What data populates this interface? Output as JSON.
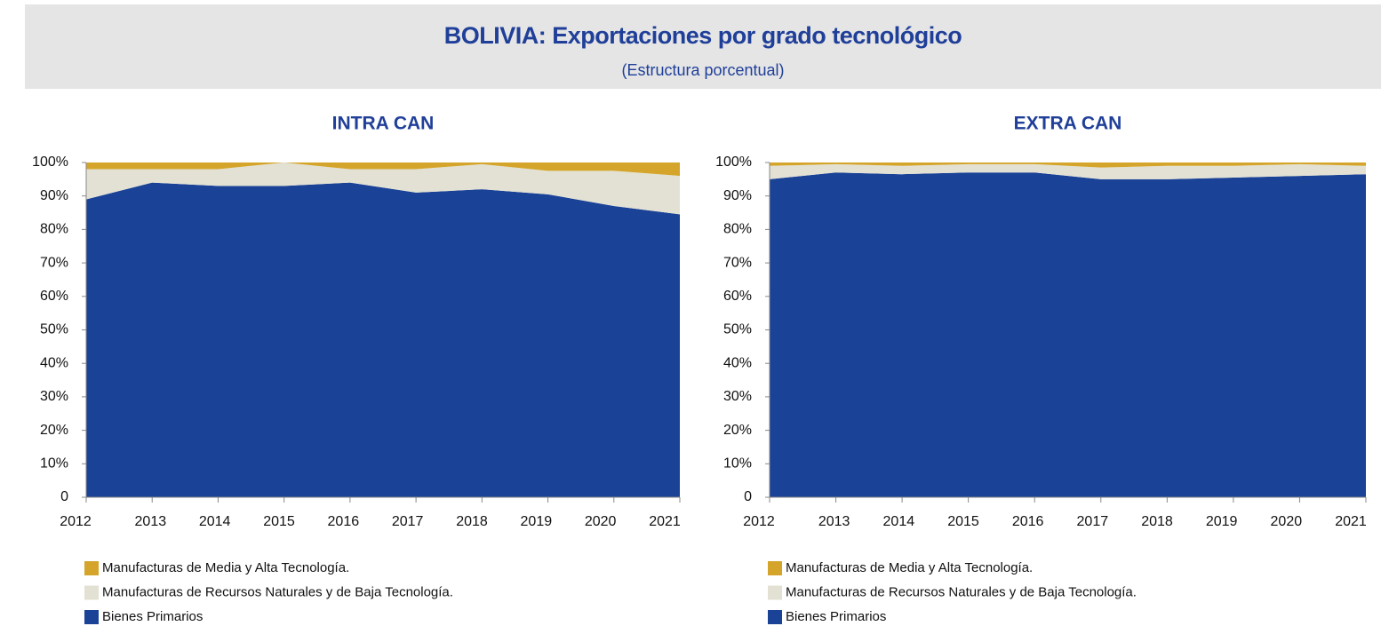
{
  "title": "BOLIVIA: Exportaciones por grado tecnológico",
  "subtitle": "(Estructura porcentual)",
  "chart_data": [
    {
      "type": "area",
      "stacked": true,
      "title": "INTRA CAN",
      "categories": [
        "2012",
        "2013",
        "2014",
        "2015",
        "2016",
        "2017",
        "2018",
        "2019",
        "2020",
        "2021"
      ],
      "series": [
        {
          "name": "Manufacturas de Media y Alta Tecnología.",
          "color": "#d4a52a",
          "values": [
            2,
            2,
            2,
            0,
            2,
            2,
            0.5,
            2.5,
            2.5,
            4
          ]
        },
        {
          "name": "Manufacturas de Recursos Naturales y de Baja Tecnología.",
          "color": "#e3e1d3",
          "values": [
            9,
            4,
            5,
            7,
            4,
            7,
            7.5,
            7,
            10.5,
            11.5
          ]
        },
        {
          "name": "Bienes Primarios",
          "color": "#1a4297",
          "values": [
            89,
            94,
            93,
            93,
            94,
            91,
            92,
            90.5,
            87,
            84.5
          ]
        }
      ],
      "ylim": [
        0,
        100
      ],
      "yticks": [
        0,
        {
          "value": 10,
          "label": "10%"
        },
        {
          "value": 20,
          "label": "20%"
        },
        {
          "value": 30,
          "label": "30%"
        },
        {
          "value": 40,
          "label": "40%"
        },
        {
          "value": 50,
          "label": "50%"
        },
        {
          "value": 60,
          "label": "60%"
        },
        {
          "value": 70,
          "label": "70%"
        },
        {
          "value": 80,
          "label": "80%"
        },
        {
          "value": 90,
          "label": "90%"
        },
        {
          "value": 100,
          "label": "100%"
        }
      ],
      "grid": false
    },
    {
      "type": "area",
      "stacked": true,
      "title": "EXTRA CAN",
      "categories": [
        "2012",
        "2013",
        "2014",
        "2015",
        "2016",
        "2017",
        "2018",
        "2019",
        "2020",
        "2021"
      ],
      "series": [
        {
          "name": "Manufacturas de Media y Alta Tecnología.",
          "color": "#d4a52a",
          "values": [
            1,
            0.5,
            1,
            0.5,
            0.5,
            1.5,
            1,
            1,
            0.5,
            1
          ]
        },
        {
          "name": "Manufacturas de Recursos Naturales y de Baja Tecnología.",
          "color": "#e3e1d3",
          "values": [
            4,
            2.5,
            2.5,
            2.5,
            2.5,
            3.5,
            4,
            3.5,
            3.5,
            2.5
          ]
        },
        {
          "name": "Bienes Primarios",
          "color": "#1a4297",
          "values": [
            95,
            97,
            96.5,
            97,
            97,
            95,
            95,
            95.5,
            96,
            96.5
          ]
        }
      ],
      "ylim": [
        0,
        100
      ],
      "yticks": [
        0,
        {
          "value": 10,
          "label": "10%"
        },
        {
          "value": 20,
          "label": "20%"
        },
        {
          "value": 30,
          "label": "30%"
        },
        {
          "value": 40,
          "label": "40%"
        },
        {
          "value": 50,
          "label": "50%"
        },
        {
          "value": 60,
          "label": "60%"
        },
        {
          "value": 70,
          "label": "70%"
        },
        {
          "value": 80,
          "label": "80%"
        },
        {
          "value": 90,
          "label": "90%"
        },
        {
          "value": 100,
          "label": "100%"
        }
      ],
      "grid": false
    }
  ]
}
